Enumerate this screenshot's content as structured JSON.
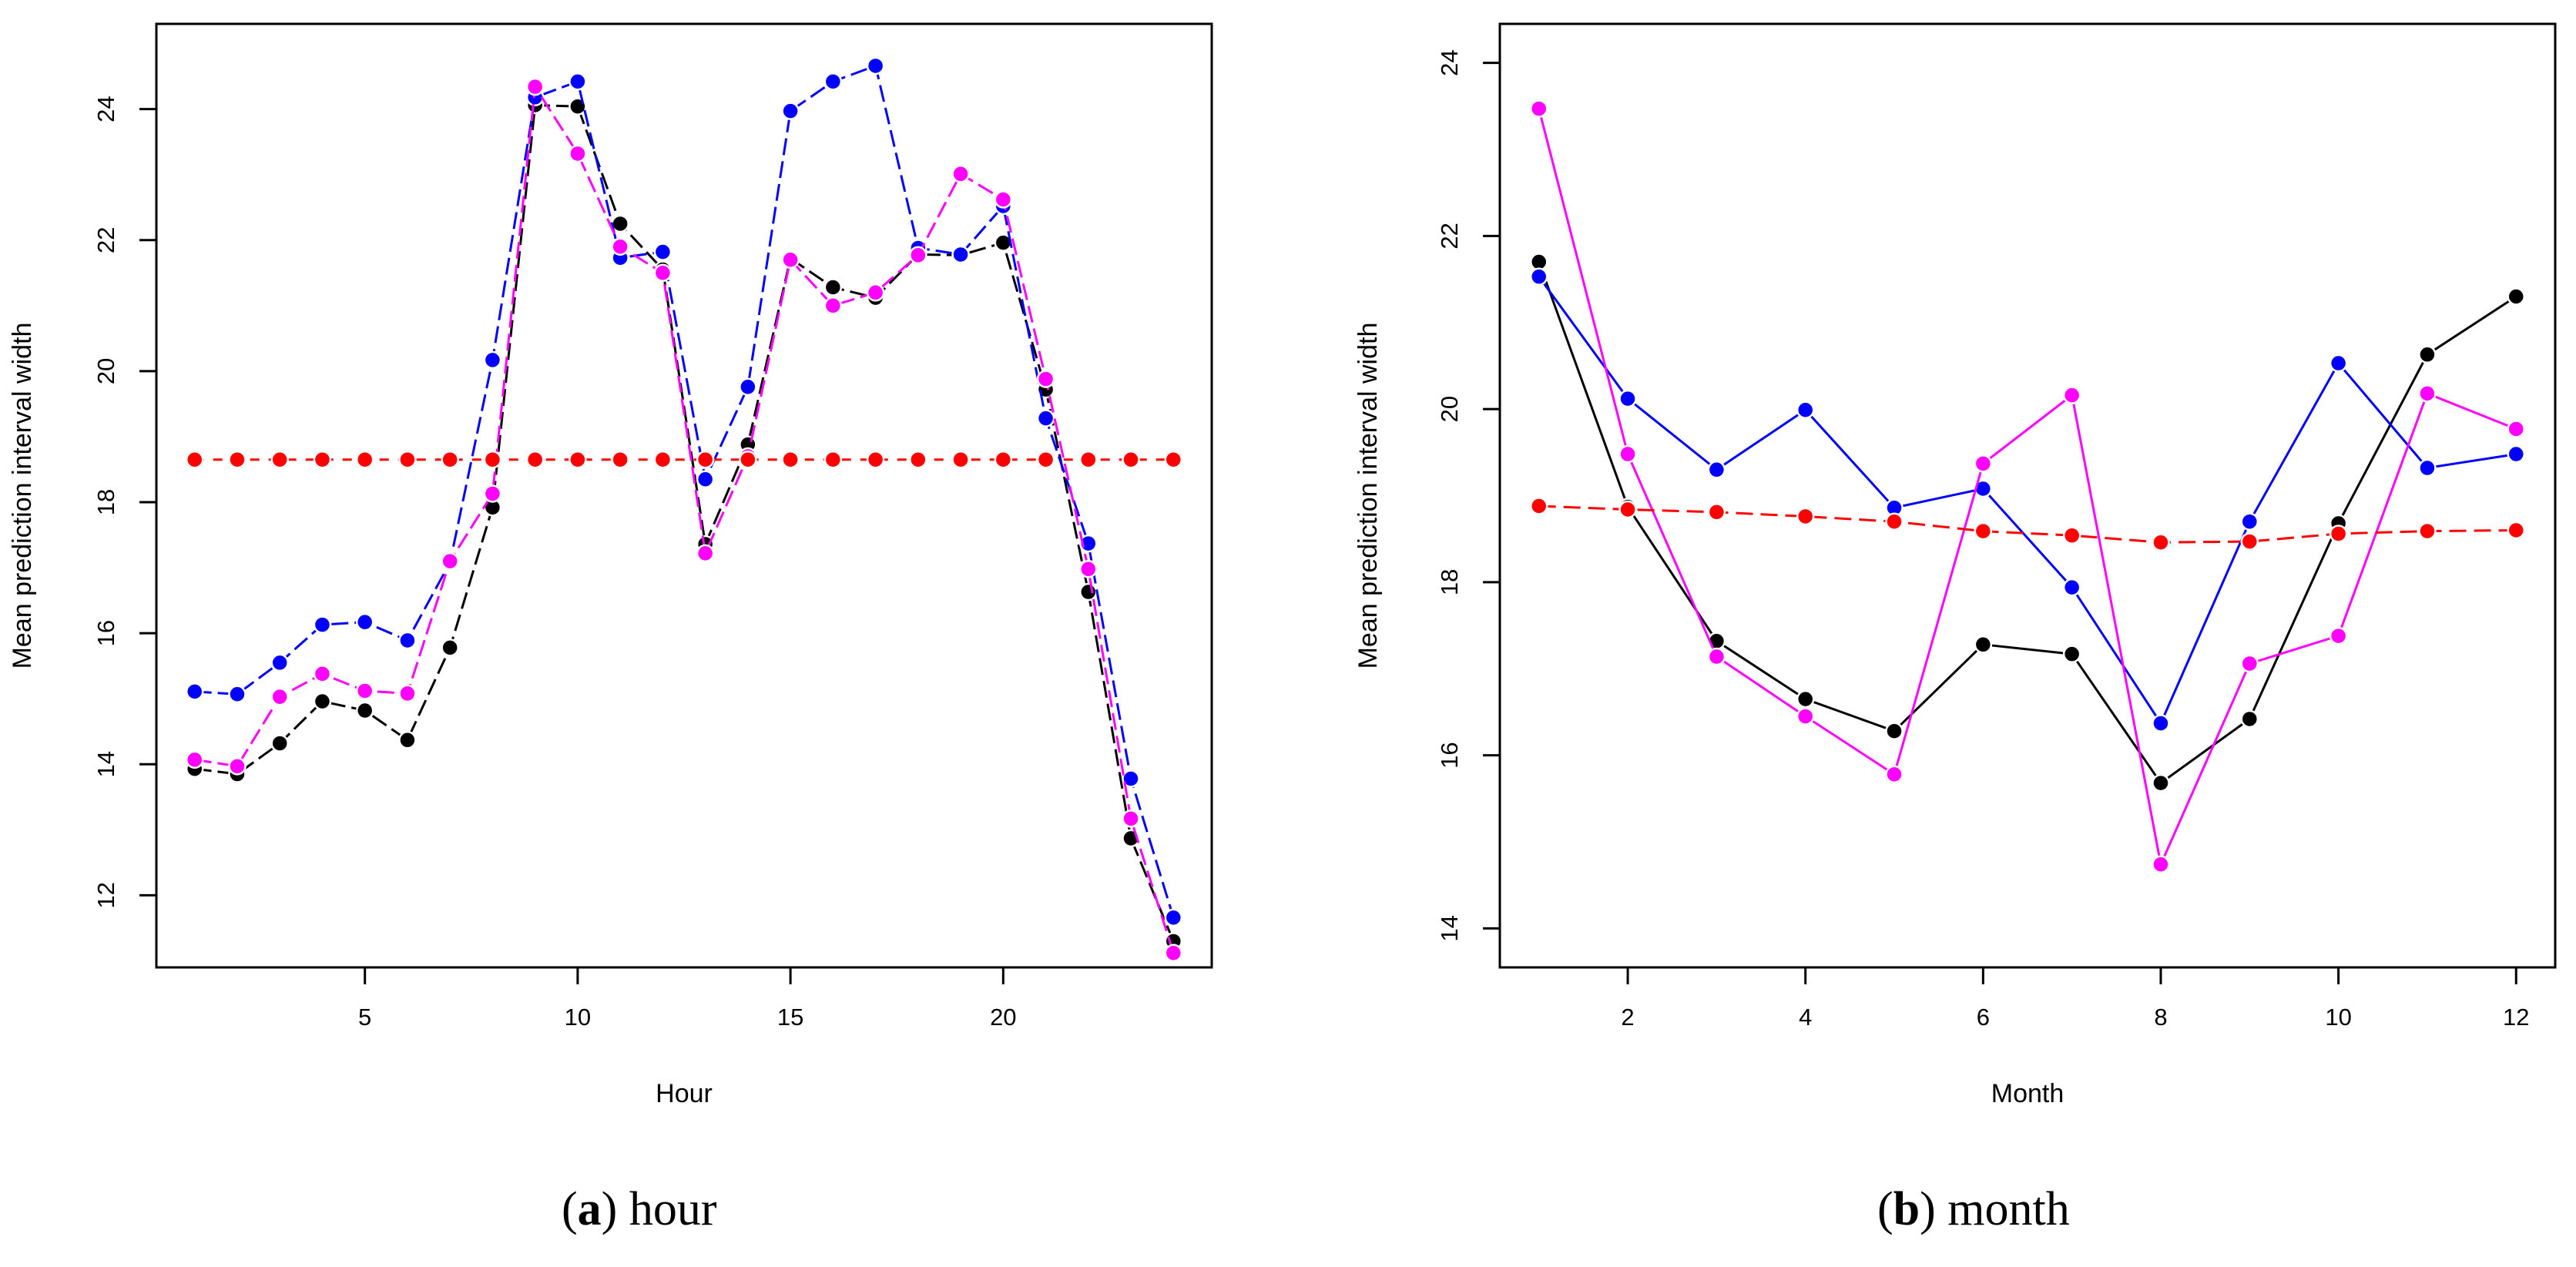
{
  "chart_data": [
    {
      "type": "line",
      "caption_label": "a",
      "caption_text": "hour",
      "xlabel": "Hour",
      "ylabel": "Mean prediction interval width",
      "xlim": [
        0.1,
        24.9
      ],
      "ylim": [
        10.9,
        25.3
      ],
      "xticks": [
        5,
        10,
        15,
        20
      ],
      "yticks": [
        12,
        14,
        16,
        18,
        20,
        22,
        24
      ],
      "x": [
        1,
        2,
        3,
        4,
        5,
        6,
        7,
        8,
        9,
        10,
        11,
        12,
        13,
        14,
        15,
        16,
        17,
        18,
        19,
        20,
        21,
        22,
        23,
        24
      ],
      "series": [
        {
          "name": "black",
          "color": "#000000",
          "dash": "22 8",
          "values": [
            13.93,
            13.85,
            14.32,
            14.96,
            14.82,
            14.37,
            15.78,
            17.92,
            24.06,
            24.04,
            22.25,
            21.55,
            17.36,
            18.88,
            21.72,
            21.28,
            21.12,
            21.78,
            21.77,
            21.96,
            19.72,
            16.63,
            12.87,
            11.3
          ]
        },
        {
          "name": "blue",
          "color": "#0000ff",
          "dash": "22 8",
          "values": [
            15.11,
            15.07,
            15.55,
            16.13,
            16.17,
            15.89,
            17.08,
            20.17,
            24.18,
            24.42,
            21.73,
            21.82,
            18.35,
            19.76,
            23.97,
            24.42,
            24.66,
            21.88,
            21.78,
            22.52,
            19.28,
            17.37,
            13.78,
            11.66
          ]
        },
        {
          "name": "magenta",
          "color": "#ff00ff",
          "dash": "22 8",
          "values": [
            14.07,
            13.97,
            15.03,
            15.38,
            15.12,
            15.08,
            17.1,
            18.13,
            24.34,
            23.32,
            21.9,
            21.5,
            17.22,
            18.7,
            21.7,
            21.0,
            21.2,
            21.77,
            23.01,
            22.62,
            19.88,
            16.98,
            13.17,
            11.12
          ]
        },
        {
          "name": "red",
          "color": "#ff0000",
          "dash": "12 12",
          "values": [
            18.65,
            18.65,
            18.65,
            18.65,
            18.65,
            18.65,
            18.65,
            18.65,
            18.65,
            18.65,
            18.65,
            18.65,
            18.65,
            18.65,
            18.65,
            18.65,
            18.65,
            18.65,
            18.65,
            18.65,
            18.65,
            18.65,
            18.65,
            18.65
          ]
        }
      ]
    },
    {
      "type": "line",
      "caption_label": "b",
      "caption_text": "month",
      "xlabel": "Month",
      "ylabel": "Mean prediction interval width",
      "xlim": [
        0.56,
        12.44
      ],
      "ylim": [
        13.55,
        24.45
      ],
      "xticks": [
        2,
        4,
        6,
        8,
        10,
        12
      ],
      "yticks": [
        14,
        16,
        18,
        20,
        22,
        24
      ],
      "x": [
        1,
        2,
        3,
        4,
        5,
        6,
        7,
        8,
        9,
        10,
        11,
        12
      ],
      "series": [
        {
          "name": "black",
          "color": "#000000",
          "dash": "",
          "values": [
            21.7,
            18.87,
            17.32,
            16.65,
            16.28,
            17.28,
            17.17,
            15.68,
            16.42,
            18.68,
            20.63,
            21.3
          ]
        },
        {
          "name": "blue",
          "color": "#0000ff",
          "dash": "",
          "values": [
            21.53,
            20.12,
            19.3,
            19.99,
            18.86,
            19.08,
            17.94,
            16.37,
            18.7,
            20.53,
            19.32,
            19.48
          ]
        },
        {
          "name": "magenta",
          "color": "#ff00ff",
          "dash": "",
          "values": [
            23.47,
            19.48,
            17.14,
            16.45,
            15.78,
            19.37,
            20.16,
            14.74,
            17.06,
            17.38,
            20.18,
            19.77
          ]
        },
        {
          "name": "red",
          "color": "#ff0000",
          "dash": "22 10",
          "values": [
            18.88,
            18.84,
            18.81,
            18.76,
            18.7,
            18.59,
            18.54,
            18.46,
            18.47,
            18.56,
            18.59,
            18.6
          ]
        }
      ]
    }
  ]
}
